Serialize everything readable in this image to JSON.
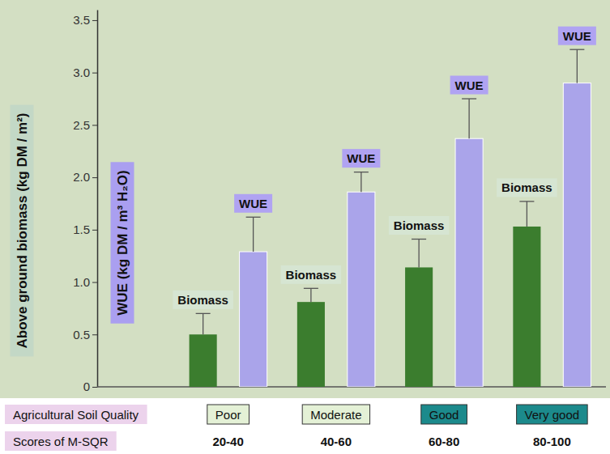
{
  "chart_data": {
    "type": "bar",
    "y_label": "Above ground biomass (kg DM / m²)",
    "y_label_2": "WUE (kg DM / m³ H₂O)",
    "row_labels": [
      "Agricultural Soil Quality",
      "Scores of M-SQR"
    ],
    "categories": [
      "Poor",
      "Moderate",
      "Good",
      "Very good"
    ],
    "scores": [
      "20-40",
      "40-60",
      "60-80",
      "80-100"
    ],
    "series": [
      {
        "name": "Biomass",
        "color": "#3b7d2e",
        "values": [
          0.5,
          0.81,
          1.14,
          1.53
        ],
        "errors": [
          0.2,
          0.13,
          0.27,
          0.24
        ]
      },
      {
        "name": "WUE",
        "color": "#aaa4ea",
        "values": [
          1.29,
          1.86,
          2.37,
          2.9
        ],
        "errors": [
          0.33,
          0.19,
          0.38,
          0.32
        ]
      }
    ],
    "ylim": [
      0,
      3.6
    ],
    "yticks": [
      0,
      0.5,
      {
        "value": 1,
        "label": "1.0"
      },
      1.5,
      {
        "value": 2,
        "label": "2.0"
      },
      2.5,
      {
        "value": 3,
        "label": "3.0"
      },
      3.5
    ],
    "grid": false
  }
}
